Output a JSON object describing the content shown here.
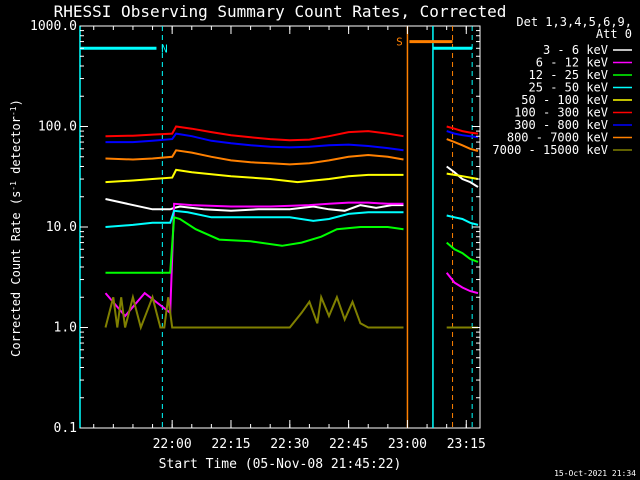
{
  "chart_data": {
    "type": "line",
    "title": "RHESSI Observing Summary Count Rates, Corrected",
    "xlabel": "Start Time (05-Nov-08 21:45:22)",
    "ylabel": "Corrected Count Rate (s⁻¹ detector⁻¹)",
    "ylabel_parts": [
      "Corrected Count Rate (s",
      "-1",
      " detector",
      "-1",
      ")"
    ],
    "ylog": true,
    "ylim": [
      0.1,
      1000
    ],
    "xlim_min": [
      -23.5,
      78.5
    ],
    "x_unit": "minutes after 22:00",
    "x_ticks": [
      {
        "v": 0,
        "label": "22:00"
      },
      {
        "v": 15,
        "label": "22:15"
      },
      {
        "v": 30,
        "label": "22:30"
      },
      {
        "v": 45,
        "label": "22:45"
      },
      {
        "v": 60,
        "label": "23:00"
      },
      {
        "v": 75,
        "label": "23:15"
      }
    ],
    "y_ticks": [
      {
        "v": 0.1,
        "label": "0.1"
      },
      {
        "v": 1,
        "label": "1.0"
      },
      {
        "v": 10,
        "label": "10.0"
      },
      {
        "v": 100,
        "label": "100.0"
      },
      {
        "v": 1000,
        "label": "1000.0"
      }
    ],
    "legend": {
      "header": [
        "Det 1,3,4,5,6,9,",
        "Att 0"
      ],
      "placement": "top-right, outside plot"
    },
    "series": [
      {
        "name": "3 - 6 keV",
        "color": "#ffffff",
        "x": [
          -17,
          -5,
          -0.5,
          0.5,
          2,
          8,
          15,
          22,
          30,
          36,
          40,
          44,
          47,
          48,
          50,
          52,
          54,
          56,
          59
        ],
        "y": [
          19,
          15,
          15,
          15.5,
          16,
          15,
          14.5,
          15,
          15,
          16,
          15,
          14.5,
          16,
          16.5,
          16,
          15.5,
          16,
          16.5,
          16.5
        ],
        "x2": [
          70,
          72,
          74,
          76,
          78
        ],
        "y2": [
          40,
          35,
          30,
          28,
          25
        ]
      },
      {
        "name": "6 - 12 keV",
        "color": "#ff00ff",
        "x": [
          -17,
          -12,
          -7,
          -0.5,
          0.5,
          5,
          15,
          25,
          35,
          40,
          45,
          50,
          55,
          59
        ],
        "y": [
          2.2,
          1.3,
          2.2,
          1.4,
          17,
          16.5,
          16,
          16,
          16.5,
          17,
          17.5,
          17.5,
          17,
          17
        ],
        "x2": [
          70,
          72,
          74,
          76,
          78
        ],
        "y2": [
          3.5,
          2.8,
          2.5,
          2.3,
          2.2
        ]
      },
      {
        "name": "12 - 25 keV",
        "color": "#00ff00",
        "x": [
          -17,
          -5,
          -0.5,
          0.5,
          2,
          6,
          12,
          20,
          28,
          33,
          38,
          42,
          48,
          55,
          59
        ],
        "y": [
          3.5,
          3.5,
          3.5,
          12.5,
          12,
          9.5,
          7.5,
          7.2,
          6.5,
          7,
          8,
          9.5,
          10,
          10,
          9.5
        ],
        "x2": [
          70,
          72,
          74,
          76,
          78
        ],
        "y2": [
          7,
          6,
          5.5,
          4.8,
          4.5
        ]
      },
      {
        "name": "25 - 50 keV",
        "color": "#00ffff",
        "x": [
          -17,
          -10,
          -5,
          -0.5,
          0.5,
          4,
          10,
          20,
          30,
          36,
          40,
          45,
          50,
          55,
          59
        ],
        "y": [
          10,
          10.5,
          11,
          11,
          14.5,
          14,
          12.5,
          12.5,
          12.5,
          11.5,
          12,
          13.5,
          14,
          14,
          14
        ],
        "x2": [
          70,
          72,
          74,
          76,
          78
        ],
        "y2": [
          13,
          12.5,
          12,
          11,
          10.5
        ]
      },
      {
        "name": "50 - 100 keV",
        "color": "#ffff00",
        "x": [
          -17,
          -10,
          -5,
          0,
          1,
          5,
          15,
          25,
          32,
          40,
          45,
          50,
          55,
          59
        ],
        "y": [
          28,
          29,
          30,
          31,
          37,
          35,
          32,
          30,
          28,
          30,
          32,
          33,
          33,
          33
        ],
        "x2": [
          70,
          72,
          74,
          76,
          78
        ],
        "y2": [
          34,
          33,
          32,
          31,
          30
        ]
      },
      {
        "name": "100 - 300 keV",
        "color": "#ff0000",
        "x": [
          -17,
          -10,
          -5,
          0,
          1,
          5,
          10,
          15,
          20,
          25,
          30,
          35,
          40,
          45,
          50,
          55,
          59
        ],
        "y": [
          80,
          81,
          83,
          85,
          100,
          95,
          88,
          82,
          78,
          75,
          73,
          74,
          80,
          88,
          90,
          85,
          80
        ],
        "x2": [
          70,
          72,
          74,
          76,
          78
        ],
        "y2": [
          100,
          95,
          90,
          87,
          85
        ]
      },
      {
        "name": "300 - 800 keV",
        "color": "#0000ff",
        "x": [
          -17,
          -10,
          -5,
          0,
          1,
          5,
          10,
          15,
          20,
          25,
          30,
          35,
          40,
          45,
          50,
          55,
          59
        ],
        "y": [
          70,
          70,
          72,
          75,
          85,
          80,
          72,
          68,
          65,
          63,
          62,
          63,
          65,
          66,
          64,
          61,
          58
        ],
        "x2": [
          70,
          72,
          74,
          76,
          78
        ],
        "y2": [
          90,
          85,
          82,
          80,
          78
        ]
      },
      {
        "name": "800 - 7000 keV",
        "color": "#ff8000",
        "x": [
          -17,
          -10,
          -5,
          0,
          1,
          5,
          10,
          15,
          20,
          25,
          30,
          35,
          40,
          45,
          50,
          55,
          59
        ],
        "y": [
          48,
          47,
          48,
          50,
          58,
          55,
          50,
          46,
          44,
          43,
          42,
          43,
          46,
          50,
          52,
          50,
          47
        ],
        "x2": [
          70,
          72,
          74,
          76,
          78
        ],
        "y2": [
          75,
          70,
          65,
          60,
          57
        ]
      },
      {
        "name": "7000 - 15000 keV",
        "color": "#808000",
        "x": [
          -17,
          -15,
          -14,
          -13,
          -12,
          -10,
          -8,
          -5,
          -3,
          -2,
          -1,
          0,
          2,
          20,
          30,
          33,
          35,
          37,
          38,
          40,
          42,
          44,
          46,
          48,
          50,
          55,
          59
        ],
        "y": [
          1,
          2,
          1,
          2,
          1,
          2,
          1,
          2,
          1,
          1,
          2,
          1,
          1,
          1,
          1,
          1.4,
          1.8,
          1.1,
          2,
          1.3,
          2,
          1.2,
          1.8,
          1.1,
          1,
          1,
          1
        ],
        "x2": [
          70,
          72,
          74,
          76,
          78
        ],
        "y2": [
          1,
          1,
          1,
          1,
          1
        ]
      }
    ],
    "annotations": [
      {
        "label": "N",
        "color": "#00ffff",
        "bar_x": [
          -23.5,
          -4
        ],
        "bar_y": 600,
        "dash_x": [
          -2.5,
          76.5
        ]
      },
      {
        "label": "S",
        "color": "#ff8000",
        "bar_x": [
          60.5,
          71.5
        ],
        "bar_y": 700,
        "dash_x": [
          71.5
        ]
      }
    ],
    "solid_verticals": [
      {
        "x": -23.5,
        "color": "#00ffff"
      },
      {
        "x": 60,
        "color": "#ff8000"
      },
      {
        "x": 66.5,
        "color": "#00ffff"
      }
    ],
    "solid_bars": [
      {
        "color": "#00ffff",
        "x": [
          66.5,
          76.5
        ],
        "y": 600
      }
    ],
    "footer": "15-Oct-2021 21:34"
  }
}
